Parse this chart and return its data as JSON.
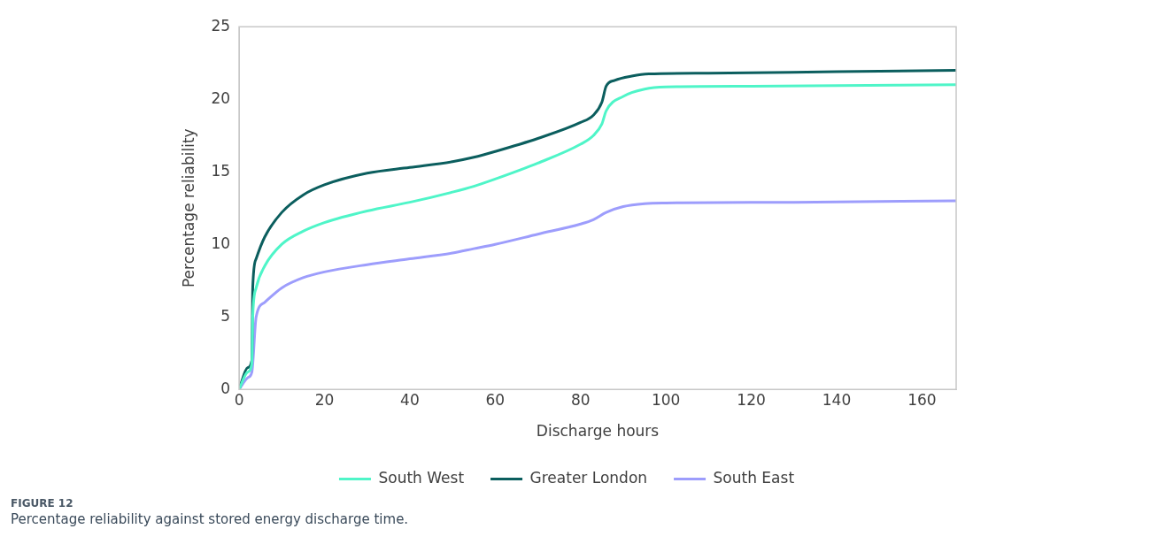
{
  "chart_data": {
    "type": "line",
    "xlabel": "Discharge hours",
    "ylabel": "Percentage reliability",
    "xlim": [
      0,
      168
    ],
    "xticks": [
      0,
      20,
      40,
      60,
      80,
      100,
      120,
      140,
      160
    ],
    "ylim": [
      0,
      25
    ],
    "yticks": [
      0,
      5,
      10,
      15,
      20,
      25
    ],
    "grid": false,
    "legend": "bottom",
    "marker": "none",
    "line_style": "solid",
    "annotations": [
      "FIGURE 12",
      "Percentage reliability against stored energy discharge time."
    ],
    "series": [
      {
        "name": "South West",
        "color": "#4ff5c8",
        "x": [
          0,
          2,
          3,
          3.2,
          4,
          6,
          10,
          15,
          20,
          30,
          40,
          50,
          55,
          60,
          70,
          80,
          83,
          85,
          86,
          90,
          95,
          100,
          120,
          168
        ],
        "values": [
          0,
          1.2,
          1.8,
          5,
          7,
          8.5,
          10,
          10.9,
          11.5,
          12.3,
          12.9,
          13.6,
          14,
          14.5,
          15.6,
          16.9,
          17.5,
          18.3,
          19.2,
          20.2,
          20.7,
          20.85,
          20.9,
          21
        ]
      },
      {
        "name": "Greater London",
        "color": "#0b5e5e",
        "x": [
          0,
          2,
          3,
          3.2,
          4,
          6,
          10,
          15,
          20,
          30,
          40,
          50,
          55,
          60,
          70,
          80,
          83,
          85,
          86,
          88,
          92,
          96,
          110,
          140,
          168
        ],
        "values": [
          0,
          1.5,
          2,
          7,
          9,
          10.5,
          12.2,
          13.4,
          14.1,
          14.9,
          15.3,
          15.7,
          16,
          16.4,
          17.3,
          18.4,
          18.9,
          19.8,
          20.9,
          21.3,
          21.6,
          21.75,
          21.8,
          21.9,
          22
        ]
      },
      {
        "name": "South East",
        "color": "#9d9dfc",
        "x": [
          0,
          2,
          3,
          4,
          6,
          10,
          15,
          20,
          30,
          40,
          50,
          55,
          60,
          70,
          80,
          83,
          86,
          90,
          95,
          100,
          130,
          168
        ],
        "values": [
          0,
          0.8,
          1.2,
          5,
          6,
          7,
          7.7,
          8.1,
          8.6,
          9,
          9.4,
          9.7,
          10,
          10.7,
          11.4,
          11.7,
          12.2,
          12.6,
          12.8,
          12.85,
          12.9,
          13
        ]
      }
    ]
  }
}
